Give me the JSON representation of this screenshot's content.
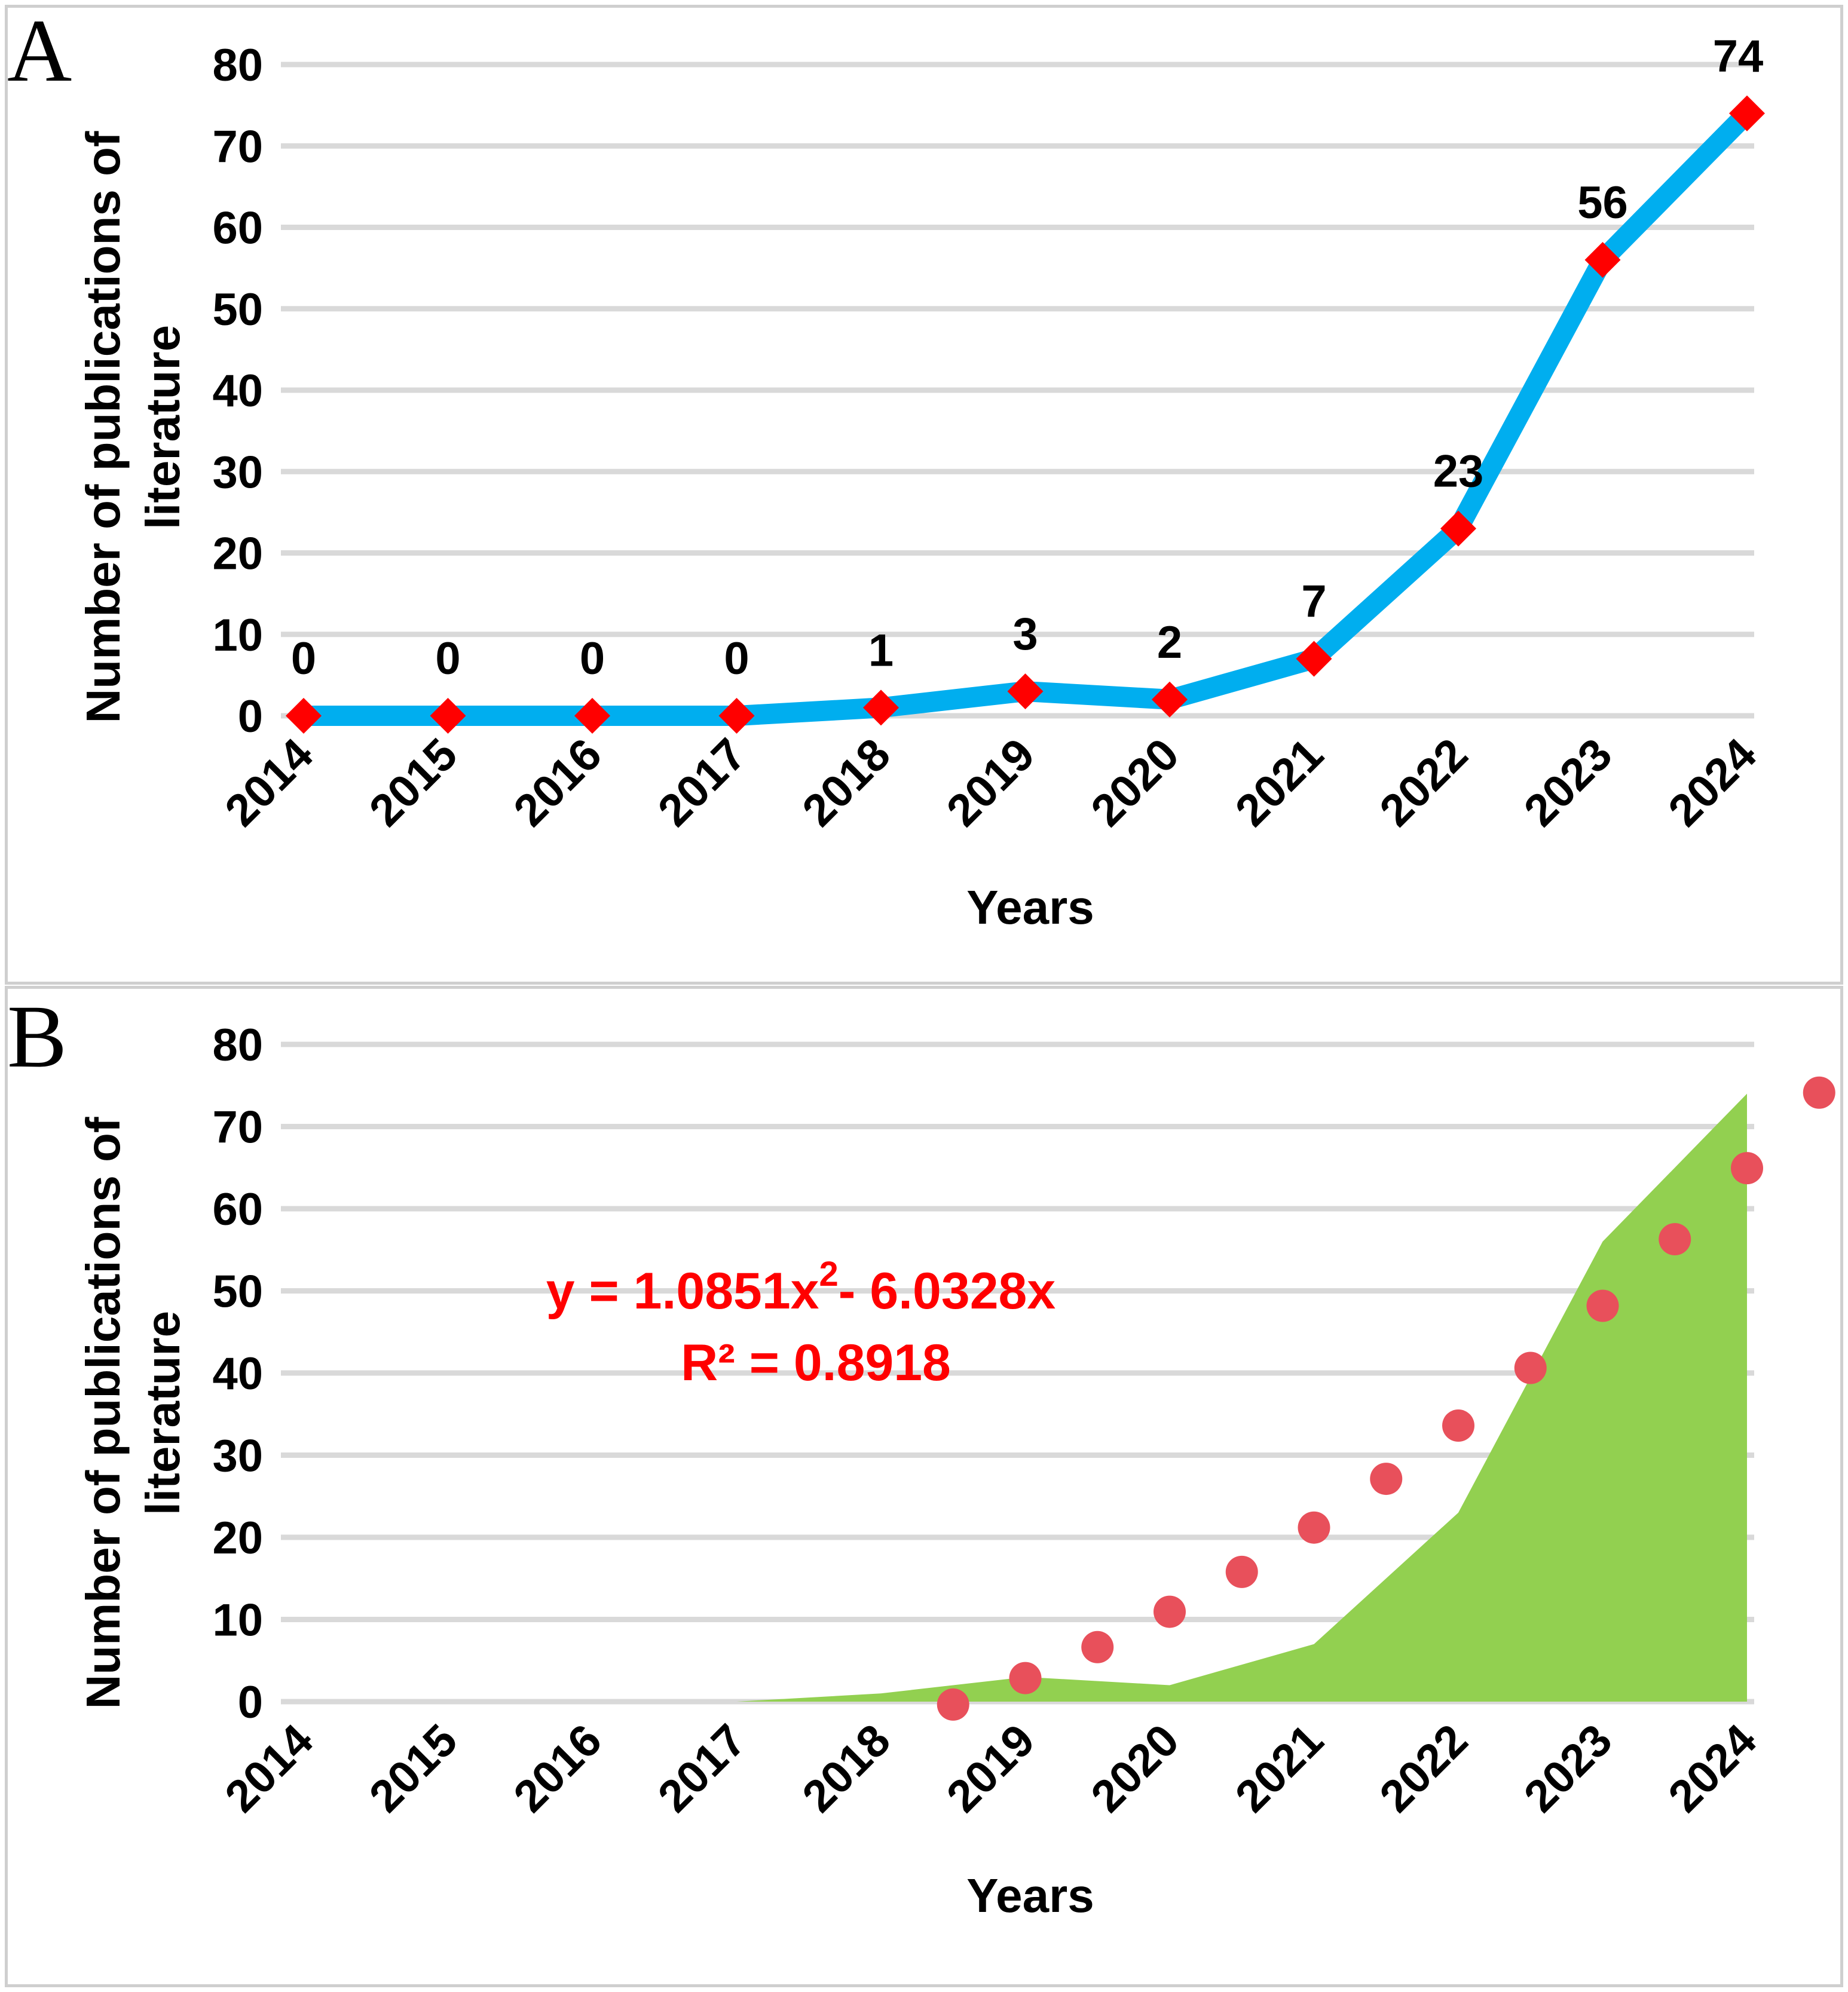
{
  "colors": {
    "line": "#00aeef",
    "marker": "#ff0000",
    "area": "#92d050",
    "trend": "#e8505b",
    "equation": "#ff0000",
    "grid": "#d9d9d9"
  },
  "chart_data": [
    {
      "panel": "A",
      "type": "line",
      "categories": [
        "2014",
        "2015",
        "2016",
        "2017",
        "2018",
        "2019",
        "2020",
        "2021",
        "2022",
        "2023",
        "2024"
      ],
      "values": [
        0,
        0,
        0,
        0,
        1,
        3,
        2,
        7,
        23,
        56,
        74
      ],
      "data_labels": [
        "0",
        "0",
        "0",
        "0",
        "1",
        "3",
        "2",
        "7",
        "23",
        "56",
        "74"
      ],
      "xlabel": "Years",
      "ylabel_line1": "Number of publications of",
      "ylabel_line2": "literature",
      "ylim": [
        0,
        80
      ],
      "yticks": [
        0,
        10,
        20,
        30,
        40,
        50,
        60,
        70,
        80
      ],
      "grid": true
    },
    {
      "panel": "B",
      "type": "area",
      "categories": [
        "2014",
        "2015",
        "2016",
        "2017",
        "2018",
        "2019",
        "2020",
        "2021",
        "2022",
        "2023",
        "2024"
      ],
      "values": [
        0,
        0,
        0,
        0,
        1,
        3,
        2,
        7,
        23,
        56,
        74
      ],
      "trendline": {
        "type": "polynomial",
        "equation_prefix": "y = 1.0851x",
        "equation_sup": "2",
        "equation_suffix": "- 6.0328x",
        "r_squared": "R² = 0.8918",
        "a": 1.0851,
        "b": -6.0328,
        "dot_x": [
          5.5,
          6.0,
          6.5,
          7.0,
          7.5,
          8.0,
          8.5,
          9.0,
          9.5,
          10.0,
          10.5,
          11.0,
          11.5
        ]
      },
      "xlabel": "Years",
      "ylabel_line1": "Number of publications of",
      "ylabel_line2": "literature",
      "ylim": [
        0,
        80
      ],
      "yticks": [
        0,
        10,
        20,
        30,
        40,
        50,
        60,
        70,
        80
      ],
      "grid": true
    }
  ]
}
